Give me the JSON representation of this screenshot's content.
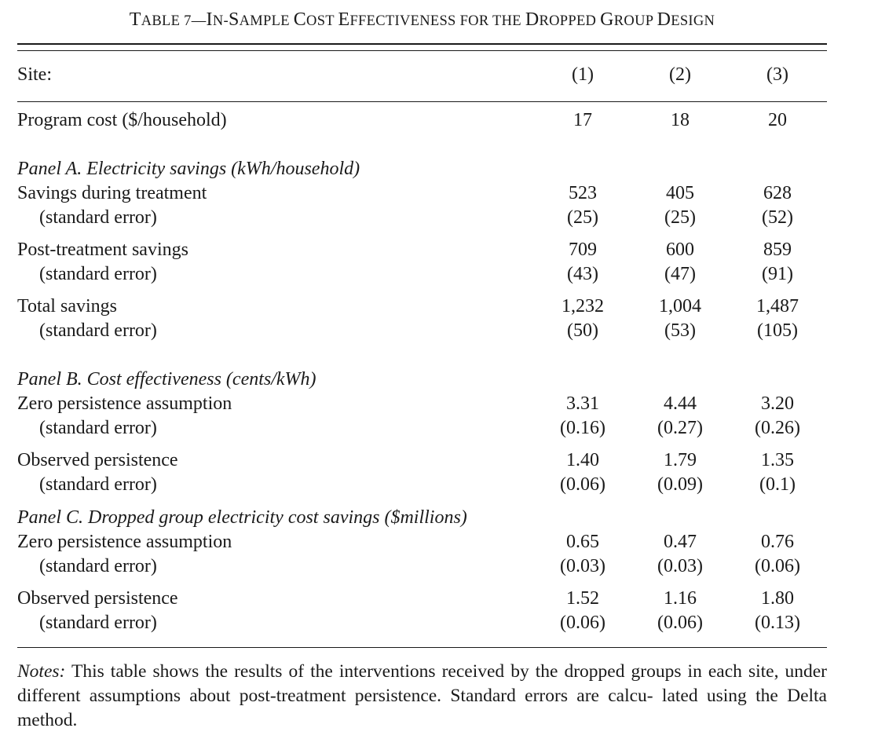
{
  "title": {
    "prefix": "T",
    "prefix_rest": "ABLE 7—",
    "parts": [
      {
        "cap": "I",
        "sc": "N-"
      },
      {
        "cap": "S",
        "sc": "AMPLE "
      },
      {
        "cap": "C",
        "sc": "OST "
      },
      {
        "cap": "E",
        "sc": "FFECTIVENESS FOR THE "
      },
      {
        "cap": "D",
        "sc": "ROPPED "
      },
      {
        "cap": "G",
        "sc": "ROUP "
      },
      {
        "cap": "D",
        "sc": "ESIGN"
      }
    ]
  },
  "header": {
    "label": "Site:",
    "cols": [
      "(1)",
      "(2)",
      "(3)"
    ]
  },
  "program_cost": {
    "label": "Program cost ($/household)",
    "values": [
      "17",
      "18",
      "20"
    ]
  },
  "panel_a": {
    "heading": "Panel A. Electricity savings (kWh/household)",
    "savings_during": {
      "label": "Savings during treatment",
      "values": [
        "523",
        "405",
        "628"
      ],
      "se_label": "(standard error)",
      "se": [
        "(25)",
        "(25)",
        "(52)"
      ]
    },
    "post_treatment": {
      "label": "Post-treatment savings",
      "values": [
        "709",
        "600",
        "859"
      ],
      "se_label": "(standard error)",
      "se": [
        "(43)",
        "(47)",
        "(91)"
      ]
    },
    "total": {
      "label": "Total savings",
      "values": [
        "1,232",
        "1,004",
        "1,487"
      ],
      "se_label": "(standard error)",
      "se": [
        "(50)",
        "(53)",
        "(105)"
      ]
    }
  },
  "panel_b": {
    "heading": "Panel B. Cost effectiveness (cents/kWh)",
    "zero": {
      "label": "Zero persistence assumption",
      "values": [
        "3.31",
        "4.44",
        "3.20"
      ],
      "se_label": "(standard error)",
      "se": [
        "(0.16)",
        "(0.27)",
        "(0.26)"
      ]
    },
    "observed": {
      "label": "Observed persistence",
      "values": [
        "1.40",
        "1.79",
        "1.35"
      ],
      "se_label": "(standard error)",
      "se": [
        "(0.06)",
        "(0.09)",
        "(0.1)"
      ]
    }
  },
  "panel_c": {
    "heading": "Panel C. Dropped group electricity cost savings ($millions)",
    "zero": {
      "label": "Zero persistence assumption",
      "values": [
        "0.65",
        "0.47",
        "0.76"
      ],
      "se_label": "(standard error)",
      "se": [
        "(0.03)",
        "(0.03)",
        "(0.06)"
      ]
    },
    "observed": {
      "label": "Observed persistence",
      "values": [
        "1.52",
        "1.16",
        "1.80"
      ],
      "se_label": "(standard error)",
      "se": [
        "(0.06)",
        "(0.06)",
        "(0.13)"
      ]
    }
  },
  "notes": {
    "label": "Notes:",
    "text": "This table shows the results of the interventions received by the dropped groups in each site, under different assumptions about post-treatment persistence. Standard errors are calcu- lated using the Delta method."
  }
}
